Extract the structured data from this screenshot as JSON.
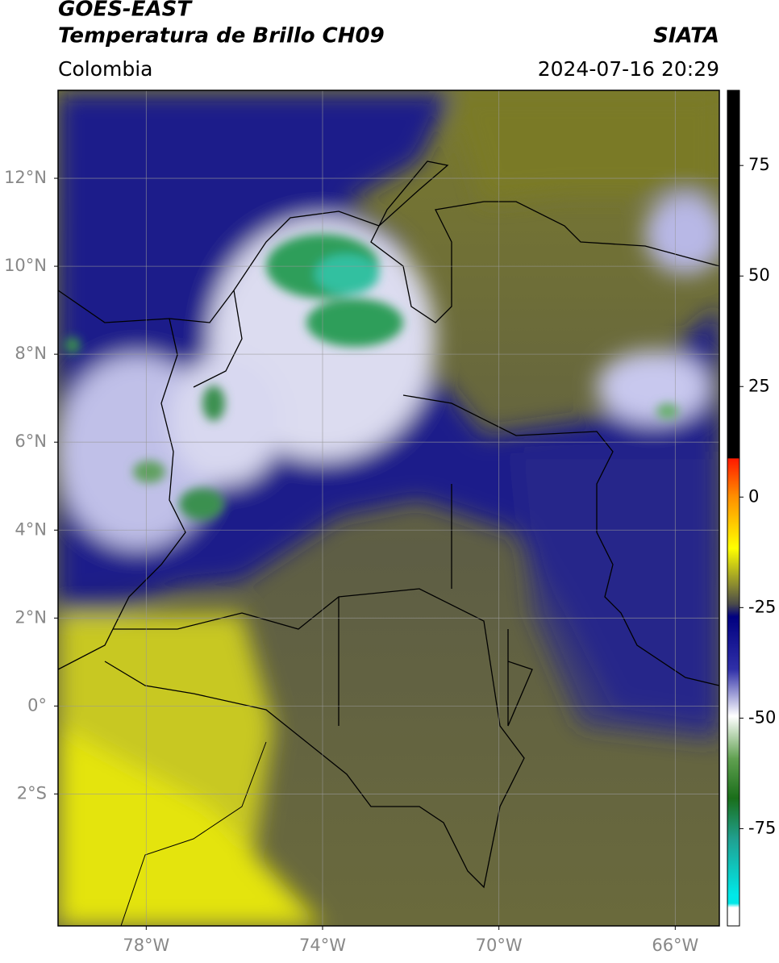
{
  "header": {
    "satellite": "GOES-EAST",
    "product": "Temperatura de Brillo CH09",
    "region": "Colombia",
    "source": "SIATA",
    "datetime": "2024-07-16 20:29"
  },
  "map": {
    "xlim": [
      -80,
      -65
    ],
    "ylim": [
      -5,
      14
    ],
    "xticks": [
      {
        "value": -78,
        "label": "78°W"
      },
      {
        "value": -74,
        "label": "74°W"
      },
      {
        "value": -70,
        "label": "70°W"
      },
      {
        "value": -66,
        "label": "66°W"
      }
    ],
    "yticks": [
      {
        "value": 12,
        "label": "12°N"
      },
      {
        "value": 10,
        "label": "10°N"
      },
      {
        "value": 8,
        "label": "8°N"
      },
      {
        "value": 6,
        "label": "6°N"
      },
      {
        "value": 4,
        "label": "4°N"
      },
      {
        "value": 2,
        "label": "2°N"
      },
      {
        "value": 0,
        "label": "0°"
      },
      {
        "value": -2,
        "label": "2°S"
      }
    ],
    "grid": true
  },
  "colorbar": {
    "lim": [
      -97,
      92
    ],
    "ticks": [
      75,
      50,
      25,
      0,
      -25,
      -50,
      -75
    ]
  }
}
